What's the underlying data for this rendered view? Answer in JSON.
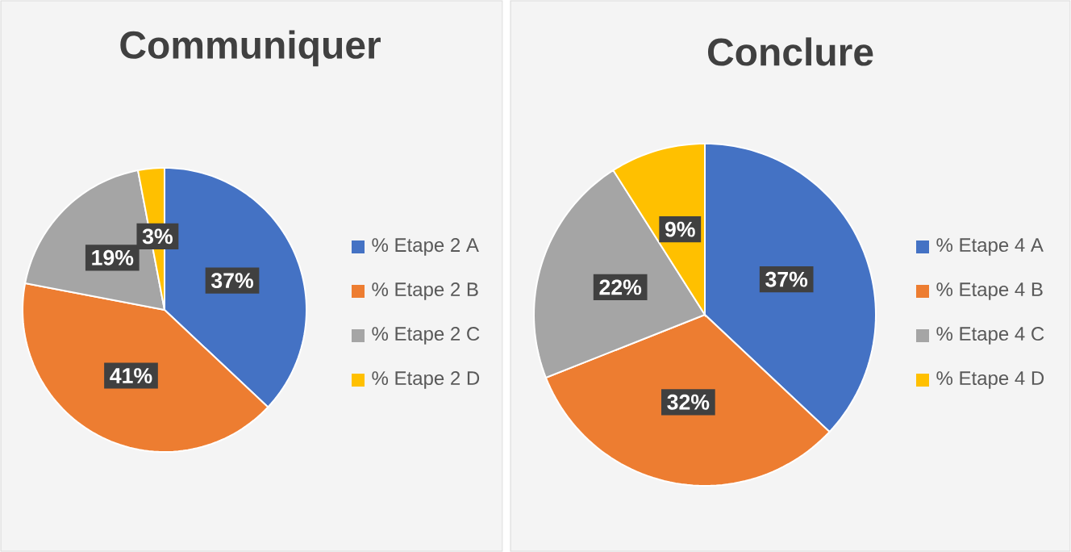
{
  "chart_data": [
    {
      "type": "pie",
      "title": "Communiquer",
      "categories": [
        "% Etape 2 A",
        "% Etape 2 B",
        "% Etape 2 C",
        "% Etape 2 D"
      ],
      "values": [
        37,
        41,
        19,
        3
      ],
      "value_labels": [
        "37%",
        "41%",
        "19%",
        "3%"
      ],
      "colors": [
        "#4472c4",
        "#ed7d31",
        "#a5a5a5",
        "#ffc000"
      ],
      "legend": "right"
    },
    {
      "type": "pie",
      "title": "Conclure",
      "categories": [
        "% Etape 4 A",
        "% Etape 4 B",
        "% Etape 4 C",
        "% Etape 4 D"
      ],
      "values": [
        37,
        32,
        22,
        9
      ],
      "value_labels": [
        "37%",
        "32%",
        "22%",
        "9%"
      ],
      "colors": [
        "#4472c4",
        "#ed7d31",
        "#a5a5a5",
        "#ffc000"
      ],
      "legend": "right"
    }
  ]
}
